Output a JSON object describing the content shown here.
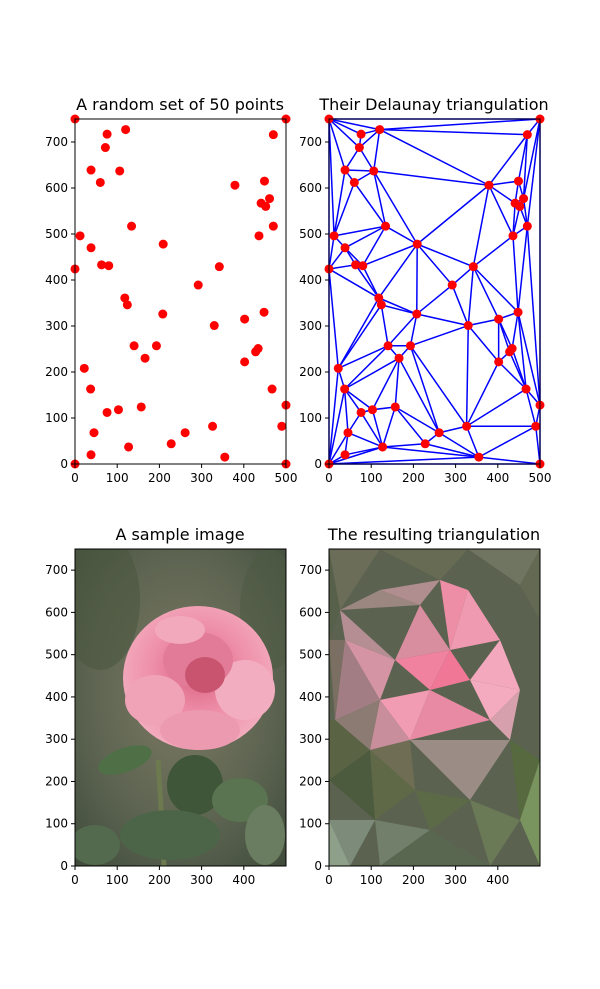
{
  "chart_data": [
    {
      "type": "scatter",
      "title": "A random set of 50 points",
      "xlim": [
        0,
        500
      ],
      "ylim": [
        750,
        0
      ],
      "xticks": [
        0,
        100,
        200,
        300,
        400,
        500
      ],
      "yticks": [
        0,
        100,
        200,
        300,
        400,
        500,
        600,
        700
      ],
      "marker_color": "#ff0000",
      "points": [
        [
          0,
          0
        ],
        [
          500,
          0
        ],
        [
          0,
          750
        ],
        [
          500,
          750
        ],
        [
          38,
          20
        ],
        [
          45,
          68
        ],
        [
          127,
          37
        ],
        [
          355,
          15
        ],
        [
          228,
          44
        ],
        [
          261,
          68
        ],
        [
          76,
          112
        ],
        [
          103,
          118
        ],
        [
          157,
          124
        ],
        [
          326,
          82
        ],
        [
          490,
          82
        ],
        [
          500,
          128
        ],
        [
          37,
          163
        ],
        [
          467,
          163
        ],
        [
          22,
          208
        ],
        [
          402,
          222
        ],
        [
          166,
          230
        ],
        [
          428,
          244
        ],
        [
          434,
          251
        ],
        [
          140,
          257
        ],
        [
          193,
          257
        ],
        [
          330,
          301
        ],
        [
          208,
          326
        ],
        [
          448,
          330
        ],
        [
          124,
          346
        ],
        [
          402,
          315
        ],
        [
          118,
          361
        ],
        [
          292,
          389
        ],
        [
          0,
          424
        ],
        [
          342,
          429
        ],
        [
          80,
          431
        ],
        [
          63,
          433
        ],
        [
          12,
          496
        ],
        [
          38,
          470
        ],
        [
          209,
          478
        ],
        [
          134,
          517
        ],
        [
          470,
          517
        ],
        [
          436,
          496
        ],
        [
          441,
          567
        ],
        [
          452,
          560
        ],
        [
          461,
          577
        ],
        [
          379,
          606
        ],
        [
          60,
          612
        ],
        [
          449,
          615
        ],
        [
          38,
          639
        ],
        [
          106,
          637
        ],
        [
          72,
          688
        ],
        [
          76,
          717
        ],
        [
          120,
          727
        ],
        [
          470,
          716
        ]
      ]
    },
    {
      "type": "triangulation",
      "title": "Their Delaunay triangulation",
      "xlim": [
        0,
        500
      ],
      "ylim": [
        750,
        0
      ],
      "xticks": [
        0,
        100,
        200,
        300,
        400,
        500
      ],
      "yticks": [
        0,
        100,
        200,
        300,
        400,
        500,
        600,
        700
      ],
      "edge_color": "#0000ff",
      "marker_color": "#ff0000"
    },
    {
      "type": "image",
      "title": "A sample image",
      "xlim": [
        0,
        500
      ],
      "ylim": [
        750,
        0
      ],
      "xticks": [
        0,
        100,
        200,
        300,
        400
      ],
      "yticks": [
        0,
        100,
        200,
        300,
        400,
        500,
        600,
        700
      ],
      "palette": {
        "background": "#5a6450",
        "petal": "#e98aa2",
        "petal_dark": "#d2607c",
        "leaf": "#4f6a47",
        "stem": "#6d7a4f"
      }
    },
    {
      "type": "image",
      "title": "The resulting triangulation",
      "xlim": [
        0,
        500
      ],
      "ylim": [
        750,
        0
      ],
      "xticks": [
        0,
        100,
        200,
        300,
        400
      ],
      "yticks": [
        0,
        100,
        200,
        300,
        400,
        500,
        600,
        700
      ],
      "palette": {
        "background": "#5c6450",
        "pink": "#f08ca6",
        "pink_light": "#f4a8bd",
        "mauve": "#a88c8a",
        "green": "#55663f"
      }
    }
  ]
}
